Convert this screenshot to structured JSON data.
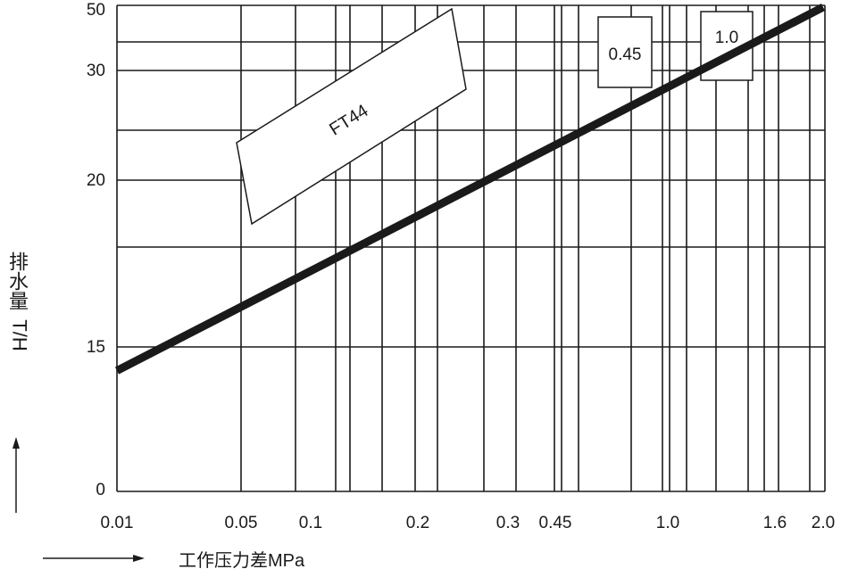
{
  "chart_data": {
    "type": "line",
    "title": "",
    "xlabel": "工作压力差MPa",
    "ylabel_chars": "排水量",
    "ylabel_unit": "T/H",
    "x_tick_labels": [
      "0.01",
      "0.05",
      "0.1",
      "0.2",
      "0.3",
      "0.45",
      "1.0",
      "1.6",
      "2.0"
    ],
    "x_ticks": [
      0.01,
      0.05,
      0.1,
      0.2,
      0.3,
      0.45,
      1.0,
      1.6,
      2.0
    ],
    "y_tick_labels": [
      "0",
      "15",
      "20",
      "30",
      "50"
    ],
    "y_ticks": [
      0,
      15,
      20,
      30,
      50
    ],
    "xlim": [
      0.01,
      2.0
    ],
    "ylim": [
      0,
      50
    ],
    "grid": true,
    "series": [
      {
        "name": "FT44",
        "x": [
          0.01,
          2.0
        ],
        "y": [
          12.5,
          50
        ],
        "color": "#1a1a1a"
      }
    ],
    "annotations": [
      "FT44",
      "0.45",
      "1.0"
    ]
  }
}
